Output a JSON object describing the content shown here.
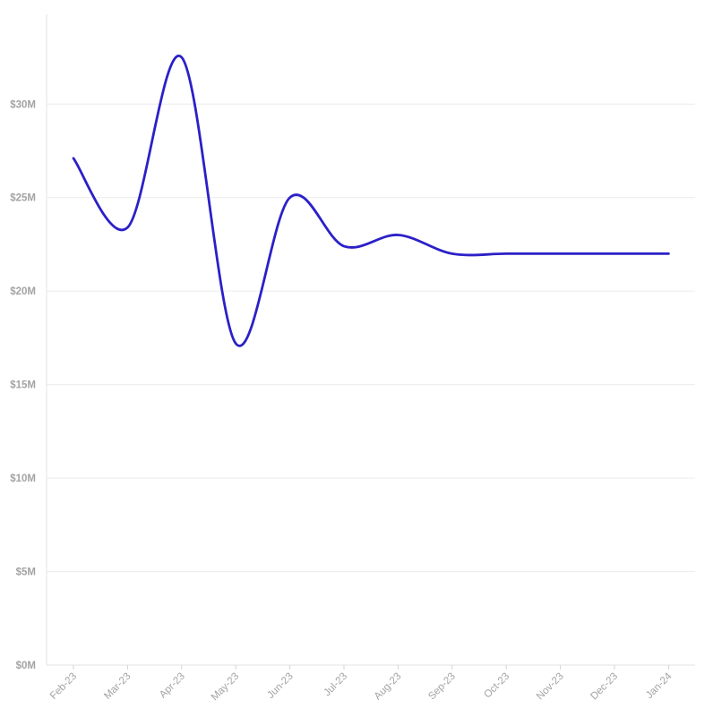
{
  "chart_data": {
    "type": "line",
    "title": "",
    "xlabel": "",
    "ylabel": "",
    "x": [
      "Feb-23",
      "Mar-23",
      "Apr-23",
      "May-23",
      "Jun-23",
      "Jul-23",
      "Aug-23",
      "Sep-23",
      "Oct-23",
      "Nov-23",
      "Dec-23",
      "Jan-24"
    ],
    "series": [
      {
        "values": [
          27.1,
          23.4,
          32.5,
          17.2,
          25.0,
          22.4,
          23.0,
          22.0,
          22.0,
          22.0,
          22.0,
          22.0
        ],
        "color": "#2b20c8"
      }
    ],
    "ylim": [
      0,
      34.8
    ],
    "y_ticks": [
      0,
      5,
      10,
      15,
      20,
      25,
      30
    ],
    "y_tick_labels": [
      "$0M",
      "$5M",
      "$10M",
      "$15M",
      "$20M",
      "$25M",
      "$30M"
    ],
    "grid": true,
    "legend": "none",
    "curve": "smooth"
  }
}
